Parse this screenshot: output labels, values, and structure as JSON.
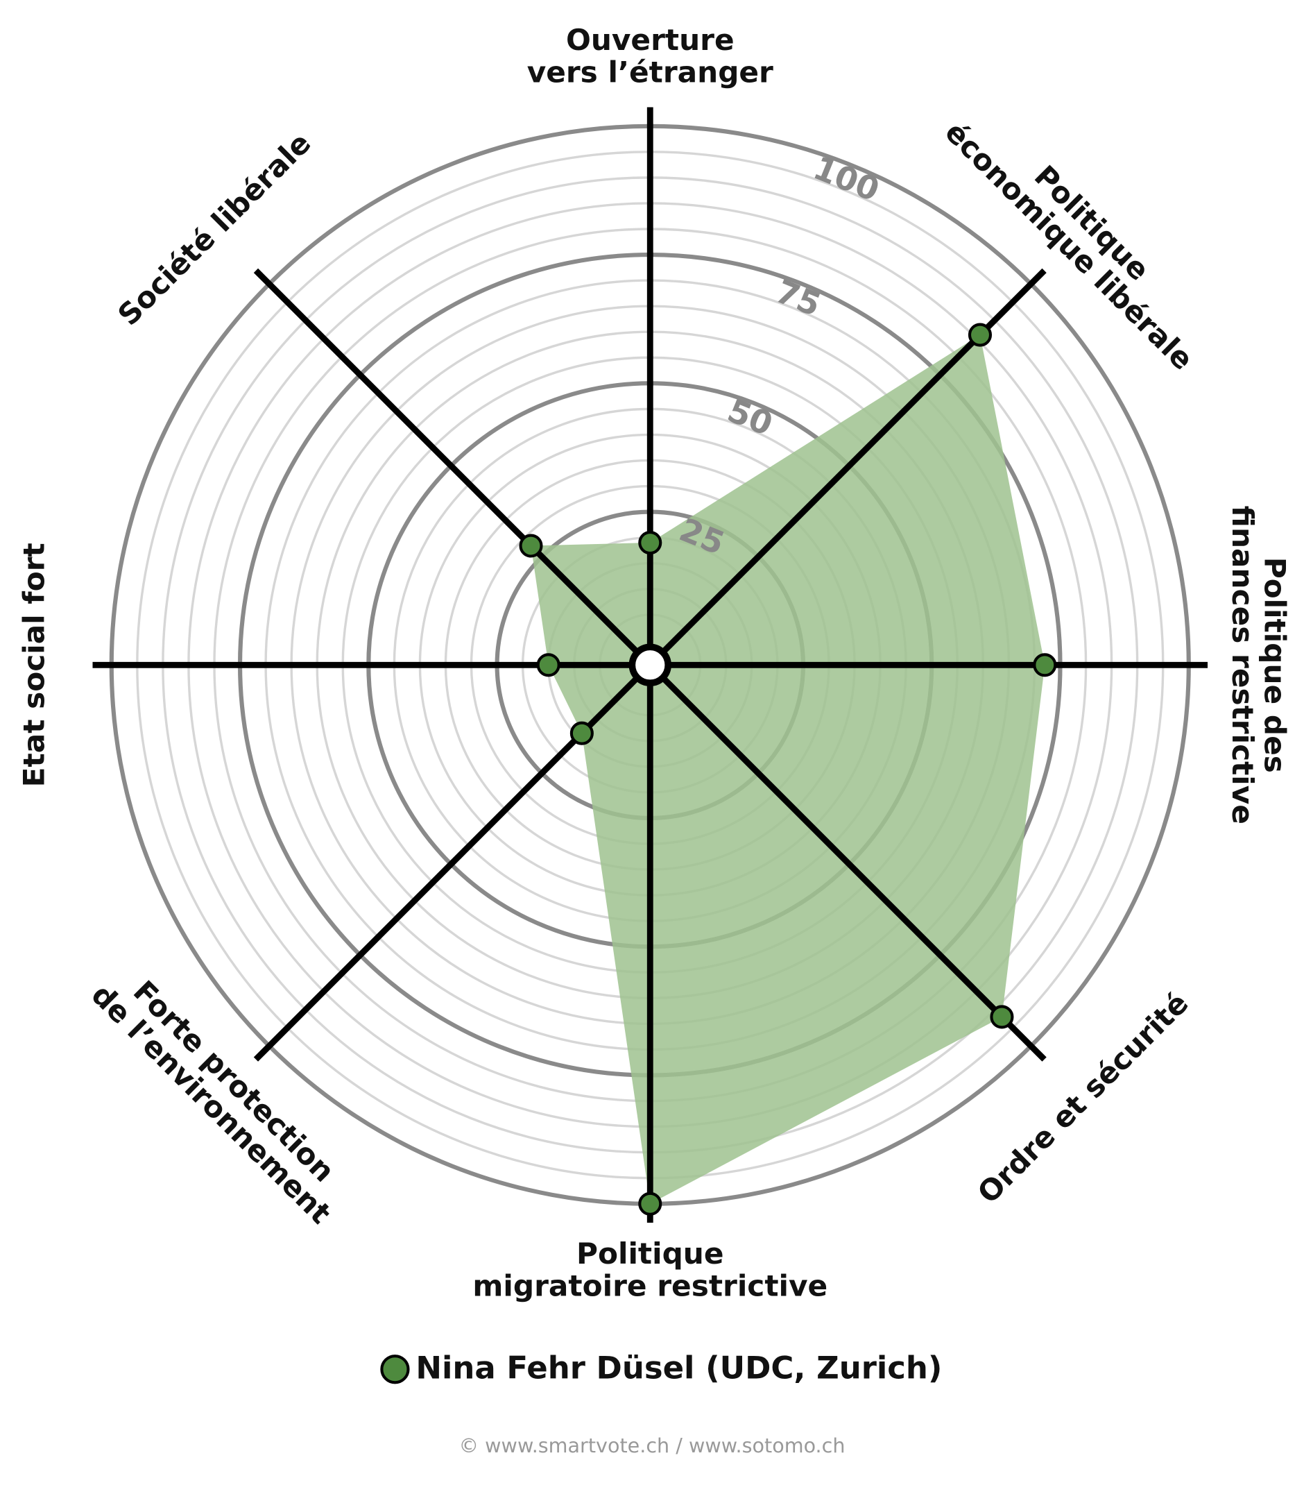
{
  "chart_data": {
    "type": "radar",
    "axes": [
      [
        "Ouverture",
        "vers l’étranger"
      ],
      [
        "Politique",
        "économique libérale"
      ],
      [
        "Politique des",
        "finances restrictive"
      ],
      [
        "Ordre et sécurité"
      ],
      [
        "Politique",
        "migratoire restrictive"
      ],
      [
        "Forte protection",
        "de l’environnement"
      ],
      [
        "Etat social fort"
      ],
      [
        "Société libérale"
      ]
    ],
    "series": [
      {
        "name": "Nina Fehr Düsel (UDC, Zurich)",
        "color": "#4e8a3e",
        "fill": "#9fc28f",
        "values": [
          19,
          86,
          72,
          92,
          100,
          14,
          15,
          28
        ]
      }
    ],
    "rlim": [
      0,
      100
    ],
    "rticks": [
      25,
      50,
      75,
      100
    ],
    "grid": true,
    "footer": "© www.smartvote.ch / www.sotomo.ch"
  }
}
